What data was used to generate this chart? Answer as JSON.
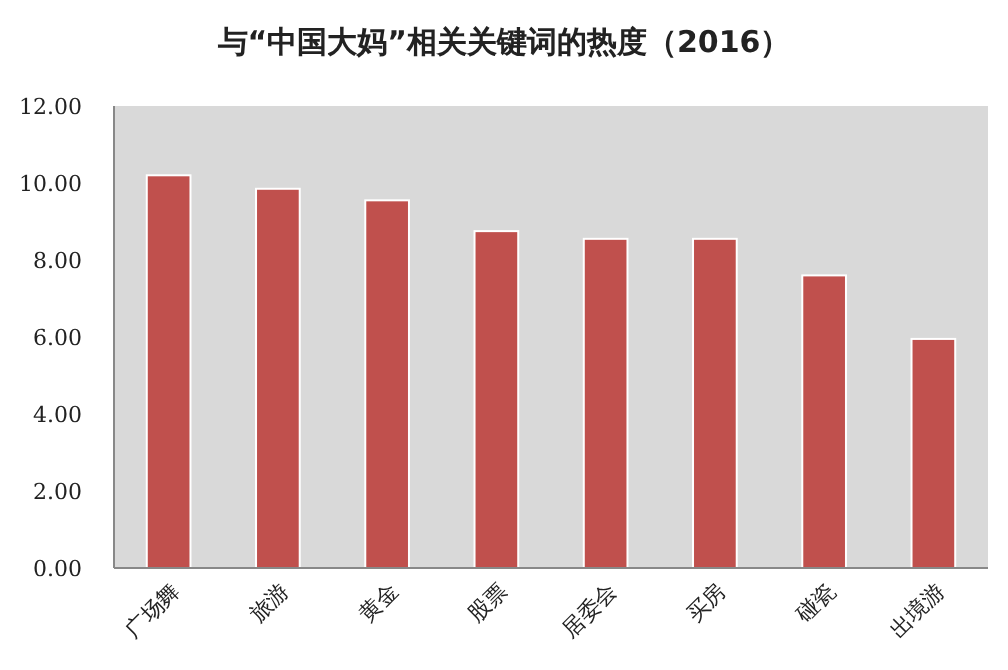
{
  "chart_data": {
    "type": "bar",
    "title": "与“中国大妈”相关关键词的热度（2016）",
    "categories": [
      "广场舞",
      "旅游",
      "黄金",
      "股票",
      "居委会",
      "买房",
      "碰瓷",
      "出境游"
    ],
    "values": [
      10.2,
      9.85,
      9.55,
      8.75,
      8.55,
      8.55,
      7.6,
      5.95
    ],
    "color": "#c0504d",
    "ylim": [
      0,
      12
    ],
    "yticks": [
      {
        "value": 0,
        "label": "0.00"
      },
      {
        "value": 2,
        "label": "2.00"
      },
      {
        "value": 4,
        "label": "4.00"
      },
      {
        "value": 6,
        "label": "6.00"
      },
      {
        "value": 8,
        "label": "8.00"
      },
      {
        "value": 10,
        "label": "10.00"
      },
      {
        "value": 12,
        "label": "12.00"
      }
    ],
    "grid": false
  }
}
